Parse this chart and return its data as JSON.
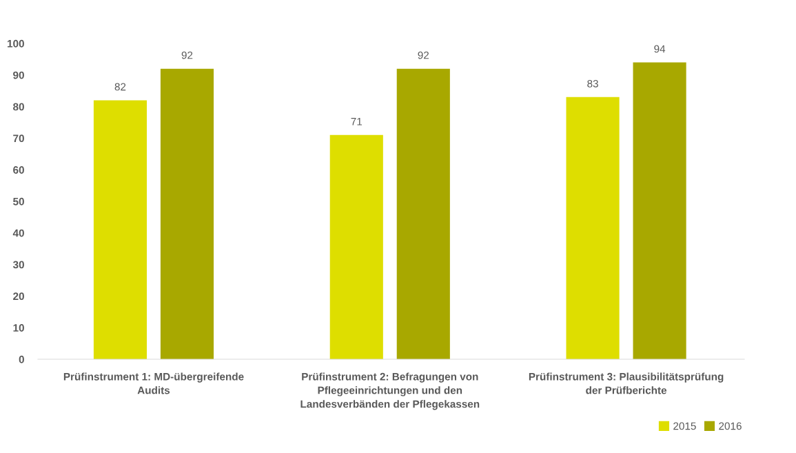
{
  "chart_data": {
    "type": "bar",
    "categories": [
      "Prüfinstrument 1: MD-übergreifende Audits",
      "Prüfinstrument 2: Befragungen von Pflegeeinrichtungen und den Landesverbänden der Pflegekassen",
      "Prüfinstrument 3: Plausibilitätsprüfung der Prüfberichte"
    ],
    "series": [
      {
        "name": "2015",
        "color": "#dede00",
        "values": [
          82,
          71,
          83
        ]
      },
      {
        "name": "2016",
        "color": "#a8a800",
        "values": [
          92,
          92,
          94
        ]
      }
    ],
    "ylim": [
      0,
      100
    ],
    "yticks": [
      0,
      10,
      20,
      30,
      40,
      50,
      60,
      70,
      80,
      90,
      100
    ],
    "data_labels": true,
    "grid": false,
    "legend": "bottom right"
  }
}
